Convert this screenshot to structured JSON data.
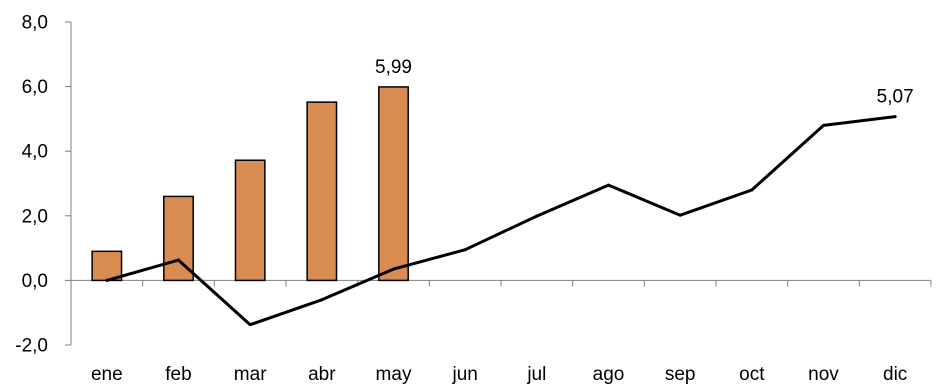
{
  "chart_data": {
    "type": "bar",
    "categories": [
      "ene",
      "feb",
      "mar",
      "abr",
      "may",
      "jun",
      "jul",
      "ago",
      "sep",
      "oct",
      "nov",
      "dic"
    ],
    "series": [
      {
        "type": "bar",
        "values": [
          0.9,
          2.6,
          3.72,
          5.52,
          5.99,
          null,
          null,
          null,
          null,
          null,
          null,
          null
        ],
        "color": "#d98c52"
      },
      {
        "type": "line",
        "values": [
          0.0,
          0.63,
          -1.37,
          -0.6,
          0.35,
          0.95,
          1.99,
          2.95,
          2.02,
          2.8,
          4.8,
          5.07
        ],
        "color": "#000000"
      }
    ],
    "data_labels": [
      {
        "series": 0,
        "index": 4,
        "text": "5,99"
      },
      {
        "series": 1,
        "index": 11,
        "text": "5,07"
      }
    ],
    "yticks": [
      {
        "value": 8,
        "label": "8,0"
      },
      {
        "value": 6,
        "label": "6,0"
      },
      {
        "value": 4,
        "label": "4,0"
      },
      {
        "value": 2,
        "label": "2,0"
      },
      {
        "value": 0,
        "label": "0,0"
      },
      {
        "value": -2,
        "label": "-2,0"
      }
    ],
    "ylim": [
      -2,
      8
    ],
    "grid": false,
    "legend": "none"
  }
}
